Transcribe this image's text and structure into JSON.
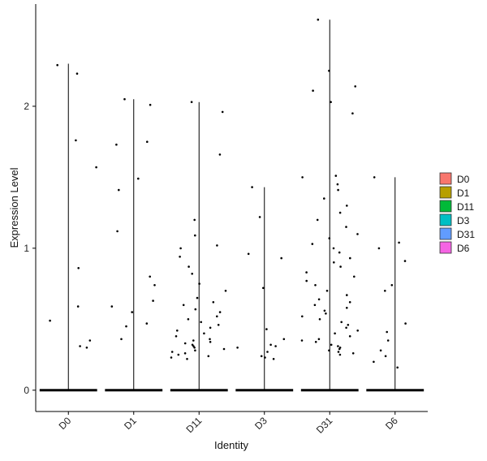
{
  "chart_data": {
    "type": "violin",
    "title": "",
    "xlabel": "Identity",
    "ylabel": "Expression Level",
    "ylim": [
      -0.15,
      2.72
    ],
    "yticks": [
      0,
      1,
      2
    ],
    "grid": false,
    "legend_position": "right",
    "categories": [
      "D0",
      "D1",
      "D11",
      "D3",
      "D31",
      "D6"
    ],
    "colors": [
      "#F8766D",
      "#B79F00",
      "#00BA38",
      "#00BFC4",
      "#619CFF",
      "#F564E3"
    ],
    "violin_max": [
      2.3,
      2.05,
      2.03,
      1.43,
      2.61,
      1.5
    ],
    "points": [
      {
        "category": "D0",
        "values": [
          2.23,
          2.29,
          1.76,
          1.57,
          0.86,
          0.59,
          0.49,
          0.35,
          0.31,
          0.3
        ]
      },
      {
        "category": "D1",
        "values": [
          1.75,
          2.05,
          2.01,
          1.73,
          1.49,
          1.41,
          1.12,
          0.8,
          0.74,
          0.63,
          0.59,
          0.55,
          0.47,
          0.45,
          0.36
        ]
      },
      {
        "category": "D11",
        "values": [
          2.03,
          1.96,
          1.66,
          1.2,
          1.09,
          1.02,
          1.0,
          0.94,
          0.87,
          0.82,
          0.75,
          0.7,
          0.65,
          0.62,
          0.6,
          0.57,
          0.55,
          0.52,
          0.5,
          0.48,
          0.46,
          0.44,
          0.42,
          0.4,
          0.38,
          0.36,
          0.35,
          0.34,
          0.33,
          0.32,
          0.31,
          0.3,
          0.29,
          0.28,
          0.27,
          0.26,
          0.25,
          0.24,
          0.23,
          0.22
        ]
      },
      {
        "category": "D3",
        "values": [
          1.43,
          1.22,
          0.96,
          0.93,
          0.72,
          0.43,
          0.36,
          0.32,
          0.31,
          0.3,
          0.27,
          0.24,
          0.23,
          0.22
        ]
      },
      {
        "category": "D31",
        "values": [
          2.61,
          2.25,
          2.14,
          2.11,
          2.03,
          1.95,
          1.51,
          1.5,
          1.45,
          1.41,
          1.35,
          1.3,
          1.25,
          1.2,
          1.15,
          1.1,
          1.07,
          1.03,
          1.0,
          0.97,
          0.93,
          0.9,
          0.87,
          0.83,
          0.8,
          0.77,
          0.74,
          0.7,
          0.67,
          0.64,
          0.62,
          0.6,
          0.58,
          0.56,
          0.54,
          0.52,
          0.5,
          0.48,
          0.46,
          0.44,
          0.42,
          0.4,
          0.38,
          0.36,
          0.35,
          0.34,
          0.32,
          0.31,
          0.3,
          0.29,
          0.28,
          0.27,
          0.26,
          0.25
        ]
      },
      {
        "category": "D6",
        "values": [
          1.5,
          1.04,
          1.0,
          0.91,
          0.74,
          0.7,
          0.47,
          0.41,
          0.35,
          0.28,
          0.24,
          0.2,
          0.16
        ]
      }
    ]
  }
}
